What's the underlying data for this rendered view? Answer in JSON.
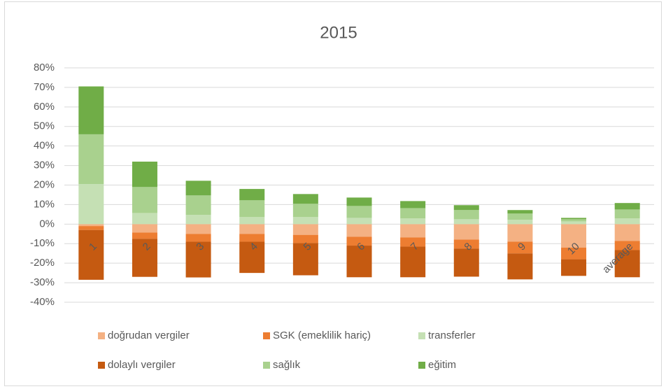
{
  "chart_data": {
    "type": "stacked_bar",
    "title": "2015",
    "categories": [
      "1",
      "2",
      "3",
      "4",
      "5",
      "6",
      "7",
      "8",
      "9",
      "10",
      "average"
    ],
    "series": [
      {
        "name": "doğrudan vergiler",
        "color": "#f4b183",
        "values": [
          -1,
          -4.3,
          -5,
          -5,
          -5.5,
          -6.5,
          -6.8,
          -7.9,
          -9,
          -12,
          -8.6
        ]
      },
      {
        "name": "SGK (emeklilik hariç)",
        "color": "#ed7d31",
        "values": [
          -2,
          -3.2,
          -4,
          -4,
          -4.2,
          -4.5,
          -4.7,
          -4.6,
          -6,
          -6,
          -4.7
        ]
      },
      {
        "name": "transferler",
        "color": "#c5e0b4",
        "values": [
          20.5,
          5.7,
          4.7,
          3.6,
          3.6,
          3.2,
          2.9,
          2.5,
          2.2,
          1.4,
          2.9
        ]
      },
      {
        "name": "dolaylı vergiler",
        "color": "#c55a11",
        "values": [
          -25.5,
          -19.5,
          -18.3,
          -16,
          -16.5,
          -16.2,
          -15.7,
          -14.4,
          -13.3,
          -8.5,
          -13.9
        ]
      },
      {
        "name": "sağlık",
        "color": "#a9d18e",
        "values": [
          25.5,
          13.3,
          10,
          8.6,
          6.8,
          6.1,
          5.3,
          4.7,
          3.2,
          1.1,
          4.6
        ]
      },
      {
        "name": "eğitim",
        "color": "#70ad47",
        "values": [
          24.5,
          13,
          7.5,
          5.8,
          5,
          4.3,
          3.6,
          2.5,
          1.8,
          0.7,
          3.3
        ]
      }
    ],
    "ylim": [
      -40,
      80
    ],
    "yticks": [
      {
        "value": -40,
        "label": "-40%"
      },
      {
        "value": -30,
        "label": "-30%"
      },
      {
        "value": -20,
        "label": "-20%"
      },
      {
        "value": -10,
        "label": "-10%"
      },
      {
        "value": 0,
        "label": "0%"
      },
      {
        "value": 10,
        "label": "10%"
      },
      {
        "value": 20,
        "label": "20%"
      },
      {
        "value": 30,
        "label": "30%"
      },
      {
        "value": 40,
        "label": "40%"
      },
      {
        "value": 50,
        "label": "50%"
      },
      {
        "value": 60,
        "label": "60%"
      },
      {
        "value": 70,
        "label": "70%"
      },
      {
        "value": 80,
        "label": "80%"
      }
    ],
    "grid": true,
    "legend": "bottom"
  }
}
